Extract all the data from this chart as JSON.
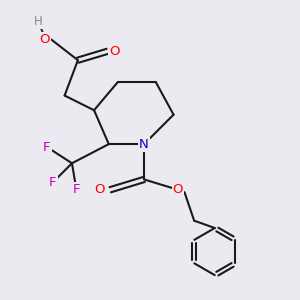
{
  "background_color": "#eaeaf0",
  "bond_color": "#1a1a1a",
  "atom_colors": {
    "O": "#ff0000",
    "N": "#0000cc",
    "F": "#cc00cc",
    "H": "#888888",
    "C": "#1a1a1a"
  },
  "font_size": 9.5,
  "figsize": [
    3.0,
    3.0
  ],
  "dpi": 100
}
